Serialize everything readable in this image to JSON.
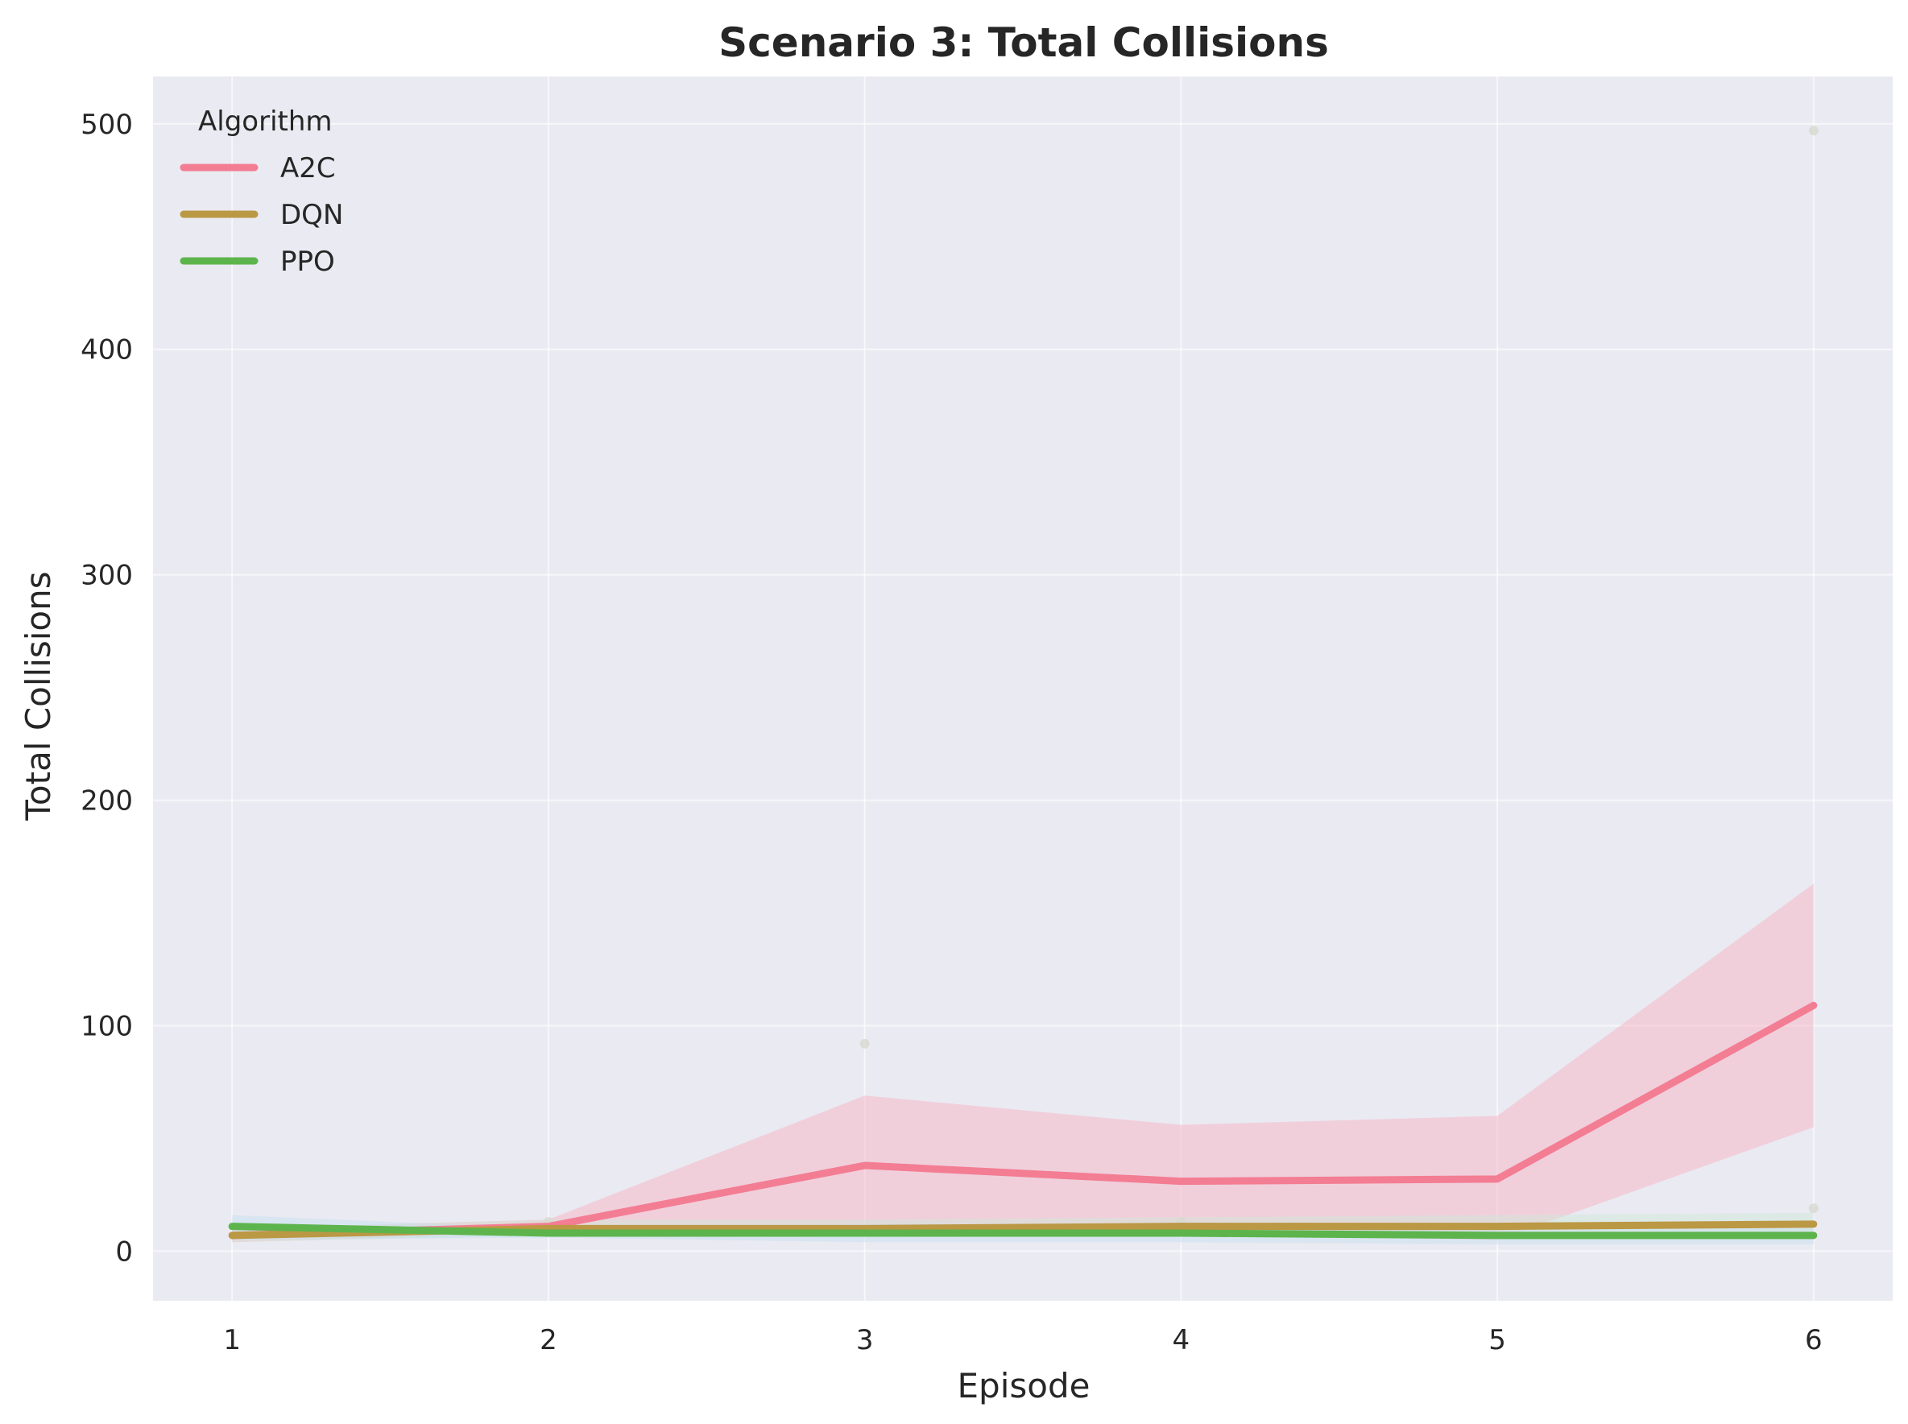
{
  "chart_data": {
    "type": "line",
    "title": "Scenario 3: Total Collisions",
    "xlabel": "Episode",
    "ylabel": "Total Collisions",
    "x": [
      1,
      2,
      3,
      4,
      5,
      6
    ],
    "xlim": [
      0.75,
      6.25
    ],
    "ylim": [
      -22,
      521
    ],
    "xticks": [
      "1",
      "2",
      "3",
      "4",
      "5",
      "6"
    ],
    "yticks": [
      0,
      100,
      200,
      300,
      400,
      500
    ],
    "grid": true,
    "legend": {
      "title": "Algorithm",
      "placement": "top-left"
    },
    "series": [
      {
        "name": "A2C",
        "color": "#f37d93",
        "values": [
          7,
          11,
          38,
          31,
          32,
          109
        ],
        "band_low": [
          4,
          8,
          8,
          7,
          5,
          55
        ],
        "band_high": [
          10,
          14,
          69,
          56,
          60,
          163
        ]
      },
      {
        "name": "DQN",
        "color": "#bb9844",
        "values": [
          7,
          10,
          10,
          11,
          11,
          12
        ],
        "band_low": [
          4,
          7,
          6,
          7,
          6,
          7
        ],
        "band_high": [
          10,
          14,
          14,
          15,
          16,
          17
        ]
      },
      {
        "name": "PPO",
        "color": "#5db44c",
        "values": [
          11,
          8,
          8,
          8,
          7,
          7
        ],
        "band_low": [
          5,
          6,
          4,
          4,
          3,
          3
        ],
        "band_high": [
          16,
          10,
          12,
          12,
          11,
          10
        ]
      }
    ],
    "outliers": [
      {
        "x": 3,
        "y": 92
      },
      {
        "x": 6,
        "y": 497
      },
      {
        "x": 6,
        "y": 19
      },
      {
        "x": 4,
        "y": 13
      },
      {
        "x": 2,
        "y": 13
      }
    ]
  }
}
